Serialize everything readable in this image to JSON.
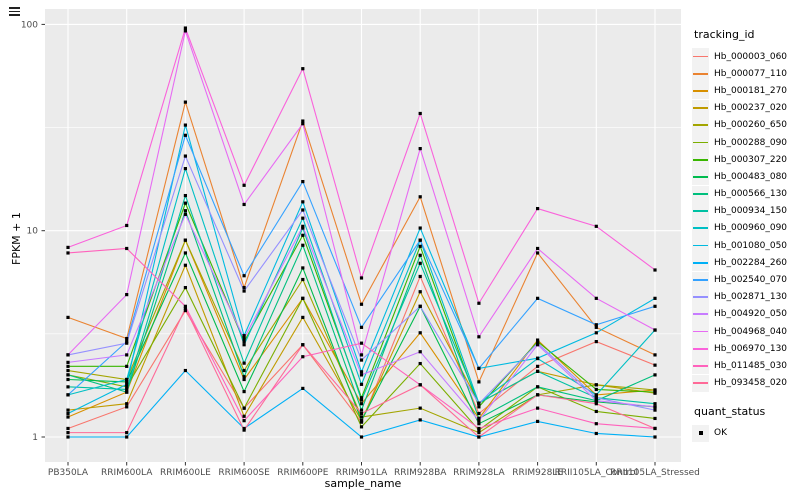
{
  "figure": {
    "background": "#FFFFFF",
    "corner_icon": "menu-icon"
  },
  "chart_data": {
    "type": "line",
    "title": "",
    "xlabel": "sample_name",
    "ylabel": "FPKM + 1",
    "y_scale": "log10",
    "y_ticks": [
      1,
      10,
      100
    ],
    "y_minor_ticks": [
      3.162,
      31.62
    ],
    "ylim": [
      0.8,
      115
    ],
    "grid": true,
    "panel_bg": "#EBEBEB",
    "grid_color": "#FFFFFF",
    "tick_color": "#333333",
    "tick_label_color": "#4D4D4D",
    "point": {
      "color": "#000000",
      "shape": "square",
      "size": 3.2
    },
    "legend_position": "right",
    "x_categories": [
      "PB350LA",
      "RRIM600LA",
      "RRIM600LE",
      "RRIM600SE",
      "RRIM600PE",
      "RRIM901LA",
      "RRIM928BA",
      "RRIM928LA",
      "RRIM928LE",
      "RRII105LA_Control",
      "RRII105LA_Stressed"
    ],
    "legend_tracking": {
      "title": "tracking_id"
    },
    "legend_quant": {
      "title": "quant_status",
      "items": [
        {
          "label": "OK",
          "marker": "square",
          "color": "#000000"
        }
      ]
    },
    "series": [
      {
        "name": "Hb_000003_060",
        "color": "#F8766D",
        "values": [
          1.1,
          1.4,
          4.1,
          1.38,
          2.8,
          1.18,
          6.0,
          1.3,
          2.2,
          2.9,
          2.23
        ]
      },
      {
        "name": "Hb_000077_110",
        "color": "#EA8331",
        "values": [
          3.8,
          3.0,
          42,
          5.3,
          34,
          4.4,
          14.6,
          1.85,
          7.8,
          3.4,
          2.5
        ]
      },
      {
        "name": "Hb_000181_270",
        "color": "#D89000",
        "values": [
          1.25,
          1.65,
          9.0,
          1.9,
          4.7,
          1.45,
          3.2,
          1.23,
          2.95,
          1.6,
          1.69
        ]
      },
      {
        "name": "Hb_000237_020",
        "color": "#C09B00",
        "values": [
          1.35,
          1.45,
          6.8,
          1.26,
          3.8,
          1.2,
          5.06,
          1.46,
          2.08,
          1.79,
          1.63
        ]
      },
      {
        "name": "Hb_000260_650",
        "color": "#A3A500",
        "values": [
          2.1,
          1.9,
          9.0,
          2.1,
          5.8,
          1.25,
          1.38,
          1.05,
          1.6,
          1.79,
          1.69
        ]
      },
      {
        "name": "Hb_000288_090",
        "color": "#7CAE00",
        "values": [
          2.0,
          1.75,
          5.3,
          1.38,
          4.7,
          1.12,
          2.27,
          1.08,
          1.75,
          1.33,
          1.23
        ]
      },
      {
        "name": "Hb_000307_220",
        "color": "#39B600",
        "values": [
          2.2,
          2.2,
          13.6,
          2.9,
          9.5,
          1.55,
          8.4,
          1.4,
          2.9,
          1.7,
          1.65
        ]
      },
      {
        "name": "Hb_000483_080",
        "color": "#00BB4E",
        "values": [
          1.9,
          1.85,
          7.8,
          1.66,
          6.6,
          1.2,
          4.3,
          1.16,
          1.6,
          1.48,
          1.4
        ]
      },
      {
        "name": "Hb_000566_130",
        "color": "#00BF7D",
        "values": [
          2.0,
          1.65,
          12.5,
          1.96,
          8.5,
          1.35,
          7.6,
          1.23,
          1.75,
          1.5,
          2.0
        ]
      },
      {
        "name": "Hb_000934_150",
        "color": "#00C1A3",
        "values": [
          1.75,
          1.7,
          14.8,
          2.28,
          10.3,
          1.51,
          6.95,
          1.46,
          2.08,
          1.55,
          1.45
        ]
      },
      {
        "name": "Hb_000960_090",
        "color": "#00BFC4",
        "values": [
          1.6,
          1.9,
          20,
          2.8,
          11.5,
          1.8,
          9.0,
          1.46,
          2.4,
          1.6,
          3.3
        ]
      },
      {
        "name": "Hb_001080_050",
        "color": "#00BAE0",
        "values": [
          1.3,
          1.8,
          32.5,
          3.1,
          13.8,
          2.07,
          10.3,
          2.15,
          2.41,
          3.2,
          4.7
        ]
      },
      {
        "name": "Hb_002284_260",
        "color": "#00B0F6",
        "values": [
          1.0,
          1.0,
          2.1,
          1.1,
          1.72,
          1.0,
          1.21,
          1.0,
          1.19,
          1.04,
          1.0
        ]
      },
      {
        "name": "Hb_002540_070",
        "color": "#35A2FF",
        "values": [
          1.6,
          2.9,
          29,
          6.05,
          17.3,
          3.4,
          9.0,
          2.15,
          4.7,
          3.5,
          4.3
        ]
      },
      {
        "name": "Hb_002871_130",
        "color": "#9590FF",
        "values": [
          2.5,
          2.85,
          23,
          5.1,
          12.6,
          2.36,
          4.3,
          1.45,
          2.85,
          1.55,
          1.35
        ]
      },
      {
        "name": "Hb_004920_050",
        "color": "#C77CFF",
        "values": [
          2.3,
          2.5,
          12,
          3.0,
          10.5,
          2.0,
          2.59,
          1.2,
          2.8,
          1.5,
          1.4
        ]
      },
      {
        "name": "Hb_004968_040",
        "color": "#E76BF3",
        "values": [
          2.5,
          4.9,
          93,
          13.4,
          33,
          2.5,
          25,
          3.06,
          8.2,
          4.7,
          3.3
        ]
      },
      {
        "name": "Hb_006970_130",
        "color": "#FA62DB",
        "values": [
          8.3,
          10.6,
          96,
          16.6,
          61,
          5.9,
          37,
          4.45,
          12.8,
          10.5,
          6.45
        ]
      },
      {
        "name": "Hb_011485_030",
        "color": "#FF62BC",
        "values": [
          7.8,
          8.2,
          4.3,
          1.2,
          2.45,
          2.85,
          1.79,
          1.1,
          1.38,
          1.16,
          1.1
        ]
      },
      {
        "name": "Hb_093458_020",
        "color": "#FF6A98",
        "values": [
          1.05,
          1.05,
          4.2,
          1.08,
          2.8,
          1.3,
          1.79,
          1.0,
          1.6,
          1.45,
          1.1
        ]
      }
    ]
  }
}
